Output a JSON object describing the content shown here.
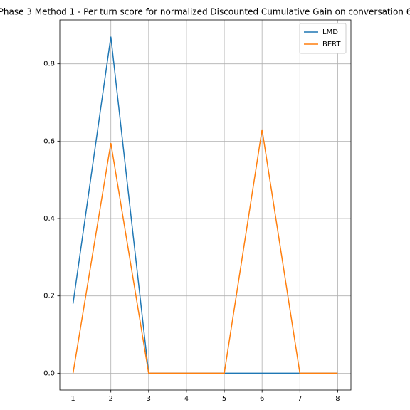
{
  "chart_data": {
    "type": "line",
    "title": "Phase 3 Method 1 - Per turn score for normalized Discounted Cumulative Gain on conversation 6",
    "x": [
      1,
      2,
      3,
      4,
      5,
      6,
      7,
      8
    ],
    "series": [
      {
        "name": "LMD",
        "color": "#1f77b4",
        "values": [
          0.18,
          0.87,
          0,
          0,
          0,
          0,
          0,
          0
        ]
      },
      {
        "name": "BERT",
        "color": "#ff7f0e",
        "values": [
          0,
          0.595,
          0,
          0,
          0,
          0.63,
          0,
          0
        ]
      }
    ],
    "xlim": [
      0.65,
      8.35
    ],
    "xticks": [
      1,
      2,
      3,
      4,
      5,
      6,
      7,
      8
    ],
    "ylim": [
      -0.0435,
      0.9135
    ],
    "yticks": [
      {
        "value": 0,
        "label": "0.0"
      },
      0.2,
      0.4,
      0.6,
      0.8
    ],
    "grid": true,
    "legend": "upper right"
  }
}
